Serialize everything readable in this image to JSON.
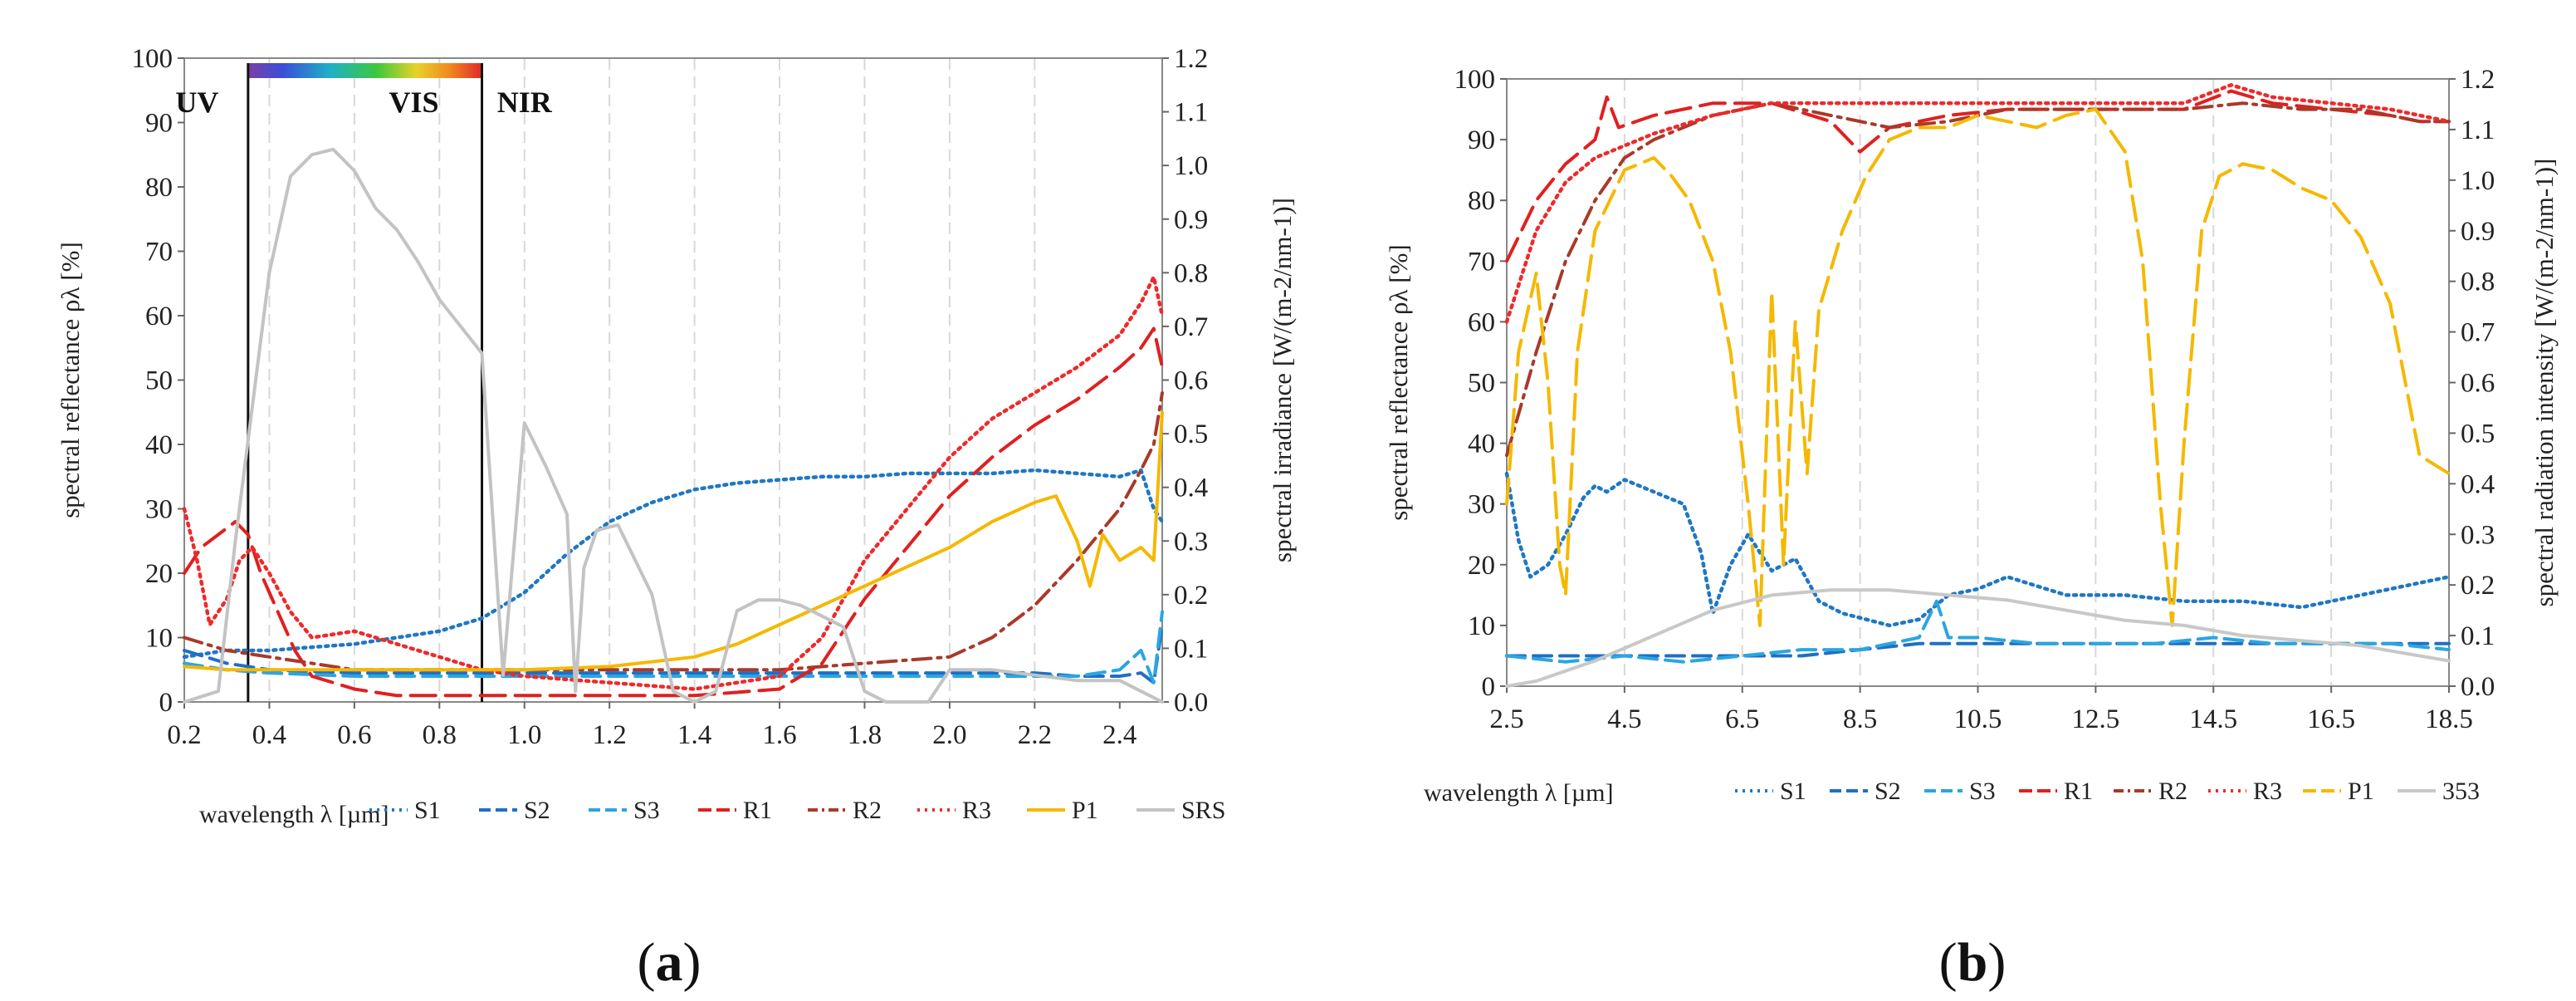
{
  "chart_data": [
    {
      "panel": "a",
      "panel_label": "(a)",
      "type": "line",
      "xlabel": "wavelength λ  [µm]",
      "ylabel": "spectral reflectance ρλ  [%]",
      "y2label": "spectral irradiance [W/(m-2/nm-1)]",
      "xlim": [
        0.2,
        2.5
      ],
      "ylim": [
        0,
        100
      ],
      "y2lim": [
        0,
        1.2
      ],
      "xticks": [
        "0.2",
        "0.4",
        "0.6",
        "0.8",
        "1.0",
        "1.2",
        "1.4",
        "1.6",
        "1.8",
        "2.0",
        "2.2",
        "2.4"
      ],
      "yticks": [
        "0",
        "10",
        "20",
        "30",
        "40",
        "50",
        "60",
        "70",
        "80",
        "90",
        "100"
      ],
      "y2ticks": [
        "0.0",
        "0.1",
        "0.2",
        "0.3",
        "0.4",
        "0.5",
        "0.6",
        "0.7",
        "0.8",
        "0.9",
        "1.0",
        "1.1",
        "1.2"
      ],
      "regions": [
        {
          "label": "UV",
          "x_label": 0.23
        },
        {
          "label": "VIS",
          "x_label": 0.74
        },
        {
          "label": "NIR",
          "x_label": 1.0
        }
      ],
      "region_bounds": [
        0.35,
        0.9
      ],
      "legend": [
        "S1",
        "S2",
        "S3",
        "R1",
        "R2",
        "R3",
        "P1",
        "SRS"
      ],
      "series": [
        {
          "name": "S1",
          "color": "#1f77c4",
          "dash": "dot",
          "x": [
            0.2,
            0.3,
            0.4,
            0.5,
            0.6,
            0.7,
            0.8,
            0.9,
            1.0,
            1.1,
            1.2,
            1.3,
            1.4,
            1.5,
            1.6,
            1.7,
            1.8,
            1.9,
            2.0,
            2.1,
            2.2,
            2.3,
            2.4,
            2.45,
            2.48,
            2.5
          ],
          "y": [
            7,
            8,
            8,
            8.5,
            9,
            10,
            11,
            13,
            17,
            23,
            28,
            31,
            33,
            34,
            34.5,
            35,
            35,
            35.5,
            35.5,
            35.5,
            36,
            35.5,
            35,
            36,
            30,
            28
          ]
        },
        {
          "name": "S2",
          "color": "#1f6fc4",
          "dash": "dash",
          "x": [
            0.2,
            0.3,
            0.4,
            0.6,
            0.8,
            1.0,
            1.2,
            1.4,
            1.6,
            1.8,
            2.0,
            2.2,
            2.3,
            2.4,
            2.45,
            2.48,
            2.5
          ],
          "y": [
            8,
            6,
            5,
            4.5,
            4.5,
            4.5,
            4.5,
            4.5,
            4.5,
            4.5,
            4.5,
            4.5,
            4,
            4,
            4.5,
            3,
            12
          ]
        },
        {
          "name": "S3",
          "color": "#2aa6e0",
          "dash": "dash",
          "x": [
            0.2,
            0.3,
            0.4,
            0.6,
            0.8,
            1.0,
            1.2,
            1.4,
            1.6,
            1.8,
            2.0,
            2.2,
            2.3,
            2.4,
            2.45,
            2.48,
            2.5
          ],
          "y": [
            6,
            5,
            4.5,
            4,
            4,
            4,
            4,
            4,
            4,
            4,
            4,
            4,
            4,
            5,
            8,
            3,
            14
          ]
        },
        {
          "name": "R1",
          "color": "#e02020",
          "dash": "longdash",
          "x": [
            0.2,
            0.24,
            0.28,
            0.32,
            0.35,
            0.38,
            0.42,
            0.46,
            0.5,
            0.6,
            0.7,
            0.8,
            0.9,
            1.0,
            1.2,
            1.4,
            1.6,
            1.7,
            1.8,
            1.9,
            2.0,
            2.1,
            2.2,
            2.3,
            2.4,
            2.45,
            2.48,
            2.5
          ],
          "y": [
            20,
            24,
            26,
            28,
            26,
            20,
            14,
            8,
            4,
            2,
            1,
            1,
            1,
            1,
            1,
            1,
            2,
            6,
            16,
            24,
            32,
            38,
            43,
            47,
            52,
            55,
            58,
            52
          ]
        },
        {
          "name": "R2",
          "color": "#a83a2a",
          "dash": "dashdot",
          "x": [
            0.2,
            0.3,
            0.4,
            0.5,
            0.6,
            0.7,
            0.8,
            0.9,
            1.0,
            1.2,
            1.4,
            1.6,
            1.8,
            2.0,
            2.1,
            2.2,
            2.3,
            2.4,
            2.45,
            2.48,
            2.5
          ],
          "y": [
            10,
            8,
            7,
            6,
            5,
            5,
            5,
            5,
            5,
            5,
            5,
            5,
            6,
            7,
            10,
            15,
            22,
            30,
            36,
            40,
            48
          ]
        },
        {
          "name": "R3",
          "color": "#ee2a2a",
          "dash": "dot",
          "x": [
            0.2,
            0.23,
            0.26,
            0.3,
            0.33,
            0.36,
            0.4,
            0.45,
            0.5,
            0.6,
            0.7,
            0.8,
            0.9,
            1.0,
            1.2,
            1.4,
            1.6,
            1.7,
            1.8,
            1.9,
            2.0,
            2.1,
            2.2,
            2.3,
            2.4,
            2.45,
            2.48,
            2.5
          ],
          "y": [
            30,
            22,
            12,
            16,
            22,
            24,
            20,
            14,
            10,
            11,
            9,
            7,
            5,
            4,
            3,
            2,
            4,
            10,
            22,
            30,
            38,
            44,
            48,
            52,
            57,
            62,
            66,
            60
          ]
        },
        {
          "name": "P1",
          "color": "#f5b800",
          "dash": "solid",
          "x": [
            0.2,
            0.3,
            0.4,
            0.6,
            0.8,
            1.0,
            1.2,
            1.4,
            1.5,
            1.6,
            1.7,
            1.8,
            1.9,
            2.0,
            2.1,
            2.2,
            2.25,
            2.3,
            2.33,
            2.36,
            2.4,
            2.45,
            2.48,
            2.5
          ],
          "y": [
            5.5,
            5,
            5,
            5,
            5,
            5,
            5.5,
            7,
            9,
            12,
            15,
            18,
            21,
            24,
            28,
            31,
            32,
            25,
            18,
            26,
            22,
            24,
            22,
            45
          ]
        },
        {
          "name": "SRS",
          "color": "#c3c3c3",
          "dash": "solid",
          "axis": "y2",
          "x": [
            0.2,
            0.28,
            0.32,
            0.36,
            0.4,
            0.45,
            0.5,
            0.55,
            0.6,
            0.65,
            0.7,
            0.75,
            0.8,
            0.85,
            0.9,
            0.95,
            1.0,
            1.05,
            1.1,
            1.12,
            1.14,
            1.17,
            1.22,
            1.3,
            1.35,
            1.4,
            1.45,
            1.5,
            1.55,
            1.6,
            1.65,
            1.7,
            1.75,
            1.8,
            1.85,
            1.9,
            1.95,
            2.0,
            2.1,
            2.2,
            2.3,
            2.4,
            2.5
          ],
          "y2": [
            0.0,
            0.02,
            0.3,
            0.55,
            0.8,
            0.98,
            1.02,
            1.03,
            0.99,
            0.92,
            0.88,
            0.82,
            0.75,
            0.7,
            0.65,
            0.05,
            0.52,
            0.44,
            0.35,
            0.02,
            0.25,
            0.32,
            0.33,
            0.2,
            0.02,
            0.0,
            0.02,
            0.17,
            0.19,
            0.19,
            0.18,
            0.16,
            0.14,
            0.02,
            0.0,
            0.0,
            0.0,
            0.06,
            0.06,
            0.05,
            0.04,
            0.04,
            0.0
          ]
        }
      ]
    },
    {
      "panel": "b",
      "panel_label": "(b)",
      "type": "line",
      "xlabel": "wavelength λ  [µm]",
      "ylabel": "spectral reflectance ρλ  [%]",
      "y2label": "spectral radiation intensity [W/(m-2/nm-1)]",
      "xlim": [
        2.5,
        18.5
      ],
      "ylim": [
        0,
        100
      ],
      "y2lim": [
        0,
        1.2
      ],
      "xticks": [
        "2.5",
        "4.5",
        "6.5",
        "8.5",
        "10.5",
        "12.5",
        "14.5",
        "16.5",
        "18.5"
      ],
      "yticks": [
        "0",
        "10",
        "20",
        "30",
        "40",
        "50",
        "60",
        "70",
        "80",
        "90",
        "100"
      ],
      "y2ticks": [
        "0.0",
        "0.1",
        "0.2",
        "0.3",
        "0.4",
        "0.5",
        "0.6",
        "0.7",
        "0.8",
        "0.9",
        "1.0",
        "1.1",
        "1.2"
      ],
      "legend": [
        "S1",
        "S2",
        "S3",
        "R1",
        "R2",
        "R3",
        "P1",
        "353"
      ],
      "series": [
        {
          "name": "S1",
          "color": "#1f77c4",
          "dash": "dot",
          "x": [
            2.5,
            2.7,
            2.9,
            3.2,
            3.5,
            3.8,
            4.0,
            4.2,
            4.5,
            5.0,
            5.5,
            5.8,
            6.0,
            6.3,
            6.6,
            7.0,
            7.4,
            7.8,
            8.2,
            9.0,
            9.5,
            10.0,
            10.5,
            11.0,
            12.0,
            13.0,
            14.0,
            15.0,
            16.0,
            17.0,
            18.0,
            18.5
          ],
          "y": [
            35,
            24,
            18,
            20,
            25,
            31,
            33,
            32,
            34,
            32,
            30,
            22,
            12,
            20,
            25,
            19,
            21,
            14,
            12,
            10,
            11,
            15,
            16,
            18,
            15,
            15,
            14,
            14,
            13,
            15,
            17,
            18
          ]
        },
        {
          "name": "S2",
          "color": "#1f6fc4",
          "dash": "dash",
          "x": [
            2.5,
            3.5,
            4.5,
            5.5,
            6.5,
            7.5,
            8.5,
            9.5,
            10.5,
            11.5,
            12.5,
            13.5,
            14.5,
            15.5,
            16.5,
            17.5,
            18.5
          ],
          "y": [
            5,
            5,
            5,
            5,
            5,
            5,
            6,
            7,
            7,
            7,
            7,
            7,
            7,
            7,
            7,
            7,
            7
          ]
        },
        {
          "name": "S3",
          "color": "#2aa6e0",
          "dash": "dash",
          "x": [
            2.5,
            3.5,
            4.5,
            5.5,
            6.5,
            7.5,
            8.5,
            9.0,
            9.5,
            9.8,
            10.0,
            10.5,
            11.5,
            12.5,
            13.5,
            14.5,
            15.5,
            16.5,
            17.5,
            18.5
          ],
          "y": [
            5,
            4,
            5,
            4,
            5,
            6,
            6,
            7,
            8,
            14,
            8,
            8,
            7,
            7,
            7,
            8,
            7,
            7,
            7,
            6
          ]
        },
        {
          "name": "R1",
          "color": "#e02020",
          "dash": "longdash",
          "x": [
            2.5,
            3.0,
            3.5,
            4.0,
            4.2,
            4.4,
            5.0,
            6.0,
            7.0,
            8.0,
            8.5,
            9.0,
            10.0,
            11.0,
            12.0,
            13.0,
            14.0,
            14.8,
            15.5,
            16.5,
            17.5,
            18.0,
            18.5
          ],
          "y": [
            70,
            80,
            86,
            90,
            97,
            92,
            94,
            96,
            96,
            93,
            88,
            92,
            94,
            95,
            95,
            95,
            95,
            98,
            96,
            95,
            94,
            93,
            93
          ]
        },
        {
          "name": "R2",
          "color": "#a83a2a",
          "dash": "dashdot",
          "x": [
            2.5,
            3.0,
            3.5,
            4.0,
            4.5,
            5.0,
            6.0,
            7.0,
            8.0,
            9.0,
            10.0,
            11.0,
            12.0,
            13.0,
            14.0,
            15.0,
            16.0,
            17.0,
            18.0,
            18.5
          ],
          "y": [
            38,
            55,
            70,
            80,
            87,
            90,
            94,
            96,
            94,
            92,
            93,
            95,
            95,
            95,
            95,
            96,
            95,
            95,
            93,
            93
          ]
        },
        {
          "name": "R3",
          "color": "#ee2a2a",
          "dash": "dot",
          "x": [
            2.5,
            3.0,
            3.5,
            4.0,
            5.0,
            6.0,
            7.0,
            8.0,
            9.0,
            10.0,
            11.0,
            12.0,
            13.0,
            14.0,
            14.8,
            15.5,
            16.5,
            17.5,
            18.5
          ],
          "y": [
            60,
            75,
            83,
            87,
            91,
            94,
            96,
            96,
            96,
            96,
            96,
            96,
            96,
            96,
            99,
            97,
            96,
            95,
            93
          ]
        },
        {
          "name": "P1",
          "color": "#f5b800",
          "dash": "longdash",
          "x": [
            2.5,
            2.7,
            3.0,
            3.2,
            3.4,
            3.5,
            3.7,
            4.0,
            4.5,
            5.0,
            5.3,
            5.6,
            6.0,
            6.3,
            6.6,
            6.8,
            7.0,
            7.2,
            7.4,
            7.6,
            7.8,
            8.2,
            8.6,
            9.0,
            9.5,
            10.0,
            10.5,
            11.0,
            11.5,
            12.0,
            12.5,
            13.0,
            13.3,
            13.6,
            13.8,
            14.0,
            14.3,
            14.6,
            15.0,
            15.5,
            16.0,
            16.5,
            17.0,
            17.5,
            17.8,
            18.0,
            18.5
          ],
          "y": [
            30,
            55,
            68,
            50,
            20,
            15,
            55,
            75,
            85,
            87,
            84,
            80,
            70,
            55,
            30,
            10,
            65,
            20,
            60,
            35,
            62,
            75,
            84,
            90,
            92,
            92,
            94,
            93,
            92,
            94,
            95,
            88,
            70,
            30,
            10,
            40,
            75,
            84,
            86,
            85,
            82,
            80,
            74,
            63,
            48,
            38,
            35
          ]
        },
        {
          "name": "353",
          "color": "#c8c8c8",
          "dash": "solid",
          "axis": "y2",
          "x": [
            2.5,
            3.0,
            4.0,
            5.0,
            6.0,
            7.0,
            8.0,
            9.0,
            10.0,
            11.0,
            12.0,
            13.0,
            14.0,
            15.0,
            16.0,
            17.0,
            18.0,
            18.5
          ],
          "y2": [
            0.0,
            0.01,
            0.05,
            0.1,
            0.15,
            0.18,
            0.19,
            0.19,
            0.18,
            0.17,
            0.15,
            0.13,
            0.12,
            0.1,
            0.09,
            0.08,
            0.06,
            0.05
          ]
        }
      ]
    }
  ]
}
